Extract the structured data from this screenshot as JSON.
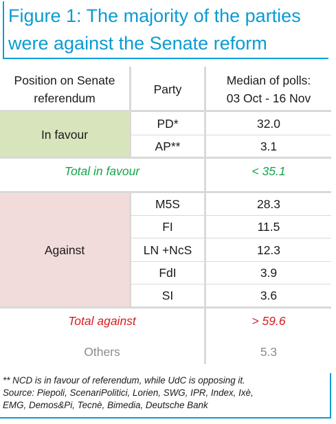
{
  "title": {
    "line1": "Figure 1:  The majority of the parties",
    "line2": "were against the Senate reform"
  },
  "chart_data": {
    "type": "table",
    "headers": {
      "position_line1": "Position on Senate",
      "position_line2": "referendum",
      "party": "Party",
      "median_line1": "Median of polls:",
      "median_line2": "03 Oct - 16 Nov"
    },
    "groups": [
      {
        "position": "In favour",
        "rows": [
          {
            "party": "PD*",
            "value": "32.0"
          },
          {
            "party": "AP**",
            "value": "3.1"
          }
        ],
        "total_label": "Total in favour",
        "total_value": "< 35.1"
      },
      {
        "position": "Against",
        "rows": [
          {
            "party": "M5S",
            "value": "28.3"
          },
          {
            "party": "FI",
            "value": "11.5"
          },
          {
            "party": "LN +NcS",
            "value": "12.3"
          },
          {
            "party": "FdI",
            "value": "3.9"
          },
          {
            "party": "SI",
            "value": "3.6"
          }
        ],
        "total_label": "Total against",
        "total_value": "> 59.6"
      }
    ],
    "others": {
      "label": "Others",
      "value": "5.3"
    },
    "colors": {
      "favour_bg": "#d8e4bc",
      "against_bg": "#f2dcdb",
      "favour_text": "#16a34a",
      "against_text": "#d91c1c",
      "accent": "#0a9bd3"
    }
  },
  "footnotes": {
    "line1": "** NCD is in favour of referendum, while UdC is opposing it.",
    "line2": "Source: Piepoli, ScenariPolitici, Lorien, SWG, IPR, Index, Ixè,",
    "line3": "EMG, Demos&Pi, Tecnè, Bimedia, Deutsche Bank"
  }
}
